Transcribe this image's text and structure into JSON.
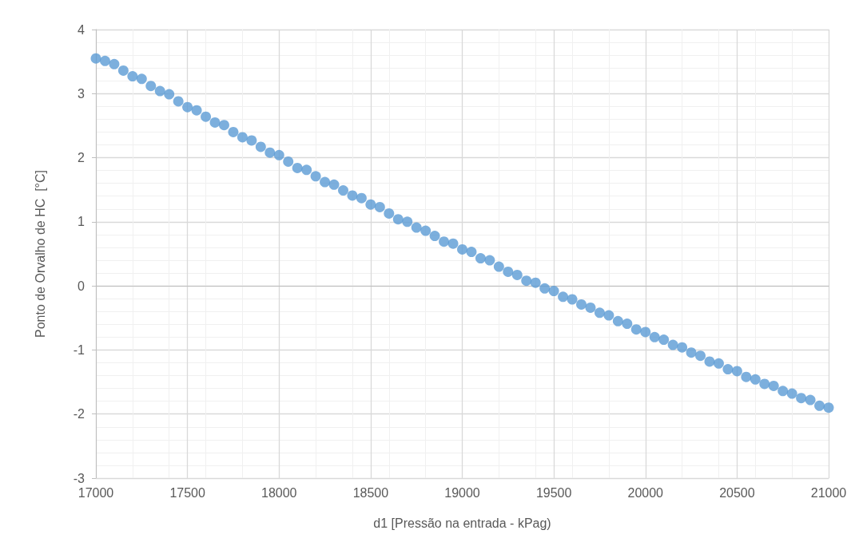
{
  "chart_data": {
    "type": "scatter",
    "xlabel": "d1 [Pressão na entrada - kPag)",
    "ylabel": "Ponto de Orvalho de HC  [°C]",
    "x": [
      17000,
      17050,
      17100,
      17150,
      17200,
      17250,
      17300,
      17350,
      17400,
      17450,
      17500,
      17550,
      17600,
      17650,
      17700,
      17750,
      17800,
      17850,
      17900,
      17950,
      18000,
      18050,
      18100,
      18150,
      18200,
      18250,
      18300,
      18350,
      18400,
      18450,
      18500,
      18550,
      18600,
      18650,
      18700,
      18750,
      18800,
      18850,
      18900,
      18950,
      19000,
      19050,
      19100,
      19150,
      19200,
      19250,
      19300,
      19350,
      19400,
      19450,
      19500,
      19550,
      19600,
      19650,
      19700,
      19750,
      19800,
      19850,
      19900,
      19950,
      20000,
      20050,
      20100,
      20150,
      20200,
      20250,
      20300,
      20350,
      20400,
      20450,
      20500,
      20550,
      20600,
      20650,
      20700,
      20750,
      20800,
      20850,
      20900,
      20950,
      21000
    ],
    "series": [
      {
        "color": "#5b9bd5",
        "values": [
          3.55,
          3.51,
          3.46,
          3.36,
          3.27,
          3.23,
          3.12,
          3.04,
          2.99,
          2.88,
          2.79,
          2.74,
          2.64,
          2.55,
          2.51,
          2.4,
          2.32,
          2.27,
          2.17,
          2.08,
          2.04,
          1.94,
          1.84,
          1.81,
          1.71,
          1.62,
          1.58,
          1.49,
          1.41,
          1.37,
          1.27,
          1.23,
          1.13,
          1.04,
          1.0,
          0.91,
          0.86,
          0.78,
          0.69,
          0.66,
          0.57,
          0.53,
          0.43,
          0.4,
          0.3,
          0.22,
          0.17,
          0.08,
          0.05,
          -0.04,
          -0.08,
          -0.17,
          -0.21,
          -0.29,
          -0.34,
          -0.42,
          -0.46,
          -0.55,
          -0.59,
          -0.68,
          -0.72,
          -0.8,
          -0.84,
          -0.92,
          -0.96,
          -1.04,
          -1.09,
          -1.18,
          -1.21,
          -1.3,
          -1.33,
          -1.42,
          -1.46,
          -1.53,
          -1.56,
          -1.64,
          -1.68,
          -1.75,
          -1.78,
          -1.87,
          -1.9
        ]
      }
    ],
    "xlim": [
      17000,
      21000
    ],
    "xticks": [
      17000,
      17500,
      18000,
      18500,
      19000,
      19500,
      20000,
      20500,
      21000
    ],
    "ylim": [
      -3,
      4
    ],
    "yticks": [
      -3,
      -2,
      -1,
      0,
      1,
      2,
      3,
      4
    ],
    "grid": true,
    "marker": "circle"
  }
}
